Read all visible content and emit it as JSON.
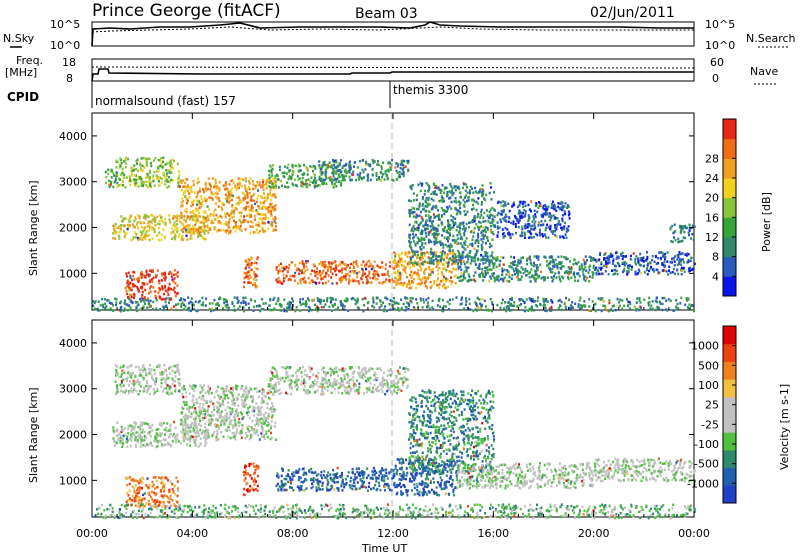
{
  "header": {
    "station": "Prince George (fitACF)",
    "beam": "Beam 03",
    "date": "02/Jun/2011"
  },
  "top_strip": {
    "nsky_label": "N.Sky",
    "nsearch_label": "N.Search",
    "left_ticks": [
      "10^5",
      "10^0"
    ],
    "right_ticks": [
      "10^5",
      "10^0"
    ]
  },
  "freq_strip": {
    "freq_label": "Freq.",
    "freq_unit": "[MHz]",
    "nave_label": "Nave",
    "left_ticks": [
      "18",
      "8"
    ],
    "right_ticks": [
      "60",
      "0"
    ],
    "cpid_label": "CPID",
    "cpid_1": "normalsound (fast) 157",
    "cpid_2": "themis 3300"
  },
  "x_axis": {
    "label": "Time UT",
    "ticks": [
      "00:00",
      "04:00",
      "08:00",
      "12:00",
      "16:00",
      "20:00",
      "00:00"
    ]
  },
  "chart_data": [
    {
      "type": "heatmap",
      "ylabel": "Slant Range [km]",
      "yticks": [
        "1000",
        "2000",
        "3000",
        "4000"
      ],
      "ylim": [
        200,
        4500
      ],
      "xlim_hours": [
        0,
        24
      ],
      "colorbar_label": "Power [dB]",
      "colorbar_ticks": [
        "4",
        "8",
        "12",
        "16",
        "20",
        "24",
        "28"
      ],
      "colorbar_colors": [
        "#0a14f0",
        "#2a5cc0",
        "#2e8a6a",
        "#35a43a",
        "#8ac43a",
        "#f0d21e",
        "#f0a01e",
        "#f06e14",
        "#e82814"
      ],
      "regions": [
        {
          "t0": 0.9,
          "t1": 3.5,
          "r0": 2900,
          "r1": 3550,
          "level": 4
        },
        {
          "t0": 0.8,
          "t1": 4.6,
          "r0": 1750,
          "r1": 2300,
          "level": 5
        },
        {
          "t0": 3.5,
          "t1": 7.3,
          "r0": 1900,
          "r1": 3100,
          "level": 6
        },
        {
          "t0": 0.5,
          "t1": 1.0,
          "r0": 2900,
          "r1": 3300,
          "level": 3
        },
        {
          "t0": 7.0,
          "t1": 10.0,
          "r0": 2900,
          "r1": 3400,
          "level": 3
        },
        {
          "t0": 9.0,
          "t1": 12.6,
          "r0": 3050,
          "r1": 3500,
          "level": 2
        },
        {
          "t0": 1.3,
          "t1": 3.4,
          "r0": 450,
          "r1": 1100,
          "level": 8
        },
        {
          "t0": 6.0,
          "t1": 6.6,
          "r0": 700,
          "r1": 1400,
          "level": 7
        },
        {
          "t0": 7.3,
          "t1": 12.3,
          "r0": 800,
          "r1": 1300,
          "level": 7
        },
        {
          "t0": 12.0,
          "t1": 14.5,
          "r0": 700,
          "r1": 1500,
          "level": 6
        },
        {
          "t0": 12.6,
          "t1": 16.0,
          "r0": 1200,
          "r1": 3000,
          "level": 2
        },
        {
          "t0": 14.5,
          "t1": 20.0,
          "r0": 850,
          "r1": 1400,
          "level": 2
        },
        {
          "t0": 20.0,
          "t1": 24.0,
          "r0": 1000,
          "r1": 1500,
          "level": 1
        },
        {
          "t0": 16.0,
          "t1": 19.0,
          "r0": 1800,
          "r1": 2600,
          "level": 1
        },
        {
          "t0": 23.0,
          "t1": 24.0,
          "r0": 1700,
          "r1": 2100,
          "level": 2
        },
        {
          "t0": 0.0,
          "t1": 24.0,
          "r0": 200,
          "r1": 500,
          "level": 2
        }
      ]
    },
    {
      "type": "heatmap",
      "ylabel": "Slant Range [km]",
      "yticks": [
        "1000",
        "2000",
        "3000",
        "4000"
      ],
      "ylim": [
        200,
        4500
      ],
      "xlim_hours": [
        0,
        24
      ],
      "colorbar_label": "Velocity  [m s-1]",
      "colorbar_ticks": [
        "1000",
        "500",
        "100",
        "25",
        "-25",
        "-100",
        "-500",
        "-1000"
      ],
      "colorbar_colors": [
        "#2040c8",
        "#2060b0",
        "#2e8a6a",
        "#50c040",
        "#c0c0c0",
        "#c0c0c0",
        "#f0c040",
        "#f08020",
        "#f04010",
        "#e00000"
      ],
      "regions": [
        {
          "t0": 0.9,
          "t1": 3.5,
          "r0": 2900,
          "r1": 3550,
          "level": 4
        },
        {
          "t0": 0.8,
          "t1": 4.6,
          "r0": 1750,
          "r1": 2300,
          "level": 4
        },
        {
          "t0": 3.5,
          "t1": 7.3,
          "r0": 1900,
          "r1": 3100,
          "level": 4
        },
        {
          "t0": 1.3,
          "t1": 3.4,
          "r0": 450,
          "r1": 1100,
          "level": 7
        },
        {
          "t0": 6.0,
          "t1": 6.6,
          "r0": 700,
          "r1": 1400,
          "level": 8
        },
        {
          "t0": 7.3,
          "t1": 12.3,
          "r0": 800,
          "r1": 1300,
          "level": 1
        },
        {
          "t0": 12.0,
          "t1": 14.5,
          "r0": 700,
          "r1": 1500,
          "level": 1
        },
        {
          "t0": 12.6,
          "t1": 16.0,
          "r0": 1200,
          "r1": 3000,
          "level": 2
        },
        {
          "t0": 14.5,
          "t1": 20.0,
          "r0": 850,
          "r1": 1400,
          "level": 4
        },
        {
          "t0": 20.0,
          "t1": 24.0,
          "r0": 1000,
          "r1": 1500,
          "level": 4
        },
        {
          "t0": 7.0,
          "t1": 12.6,
          "r0": 2900,
          "r1": 3500,
          "level": 4
        },
        {
          "t0": 0.0,
          "t1": 24.0,
          "r0": 200,
          "r1": 500,
          "level": 3
        }
      ]
    }
  ]
}
